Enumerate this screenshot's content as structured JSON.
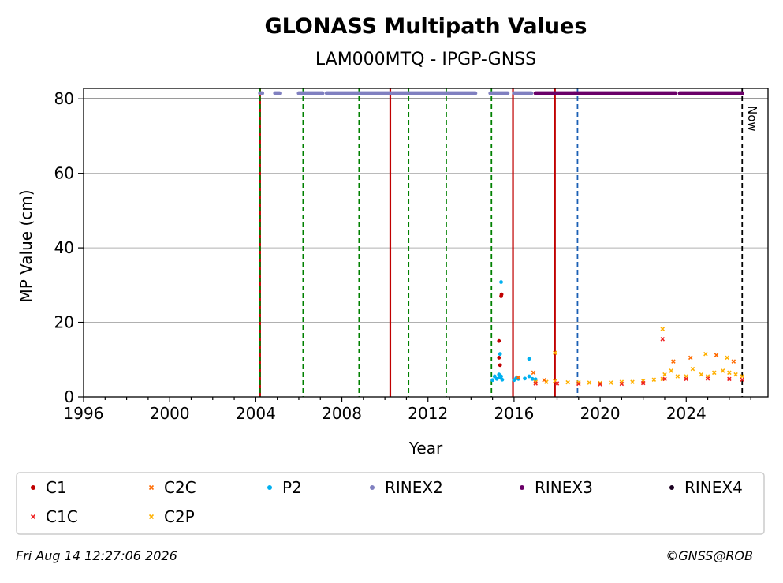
{
  "chart_data": {
    "type": "scatter",
    "title": "GLONASS Multipath Values",
    "subtitle": "LAM000MTQ - IPGP-GNSS",
    "xlabel": "Year",
    "ylabel": "MP Value (cm)",
    "xlim": [
      1996,
      2027.8
    ],
    "ylim": [
      0,
      82.8
    ],
    "x_ticks": [
      1996,
      2000,
      2004,
      2008,
      2012,
      2016,
      2020,
      2024
    ],
    "x_tick_labels": [
      "1996",
      "2000",
      "2004",
      "2008",
      "2012",
      "2016",
      "2020",
      "2024"
    ],
    "y_ticks": [
      0,
      20,
      40,
      60,
      80
    ],
    "y_tick_labels": [
      "0",
      "20",
      "40",
      "60",
      "80"
    ],
    "grid": "horizontal",
    "reference_line_y": 80,
    "legend_placement": "bottom",
    "legend": [
      {
        "label": "C1",
        "marker": "dot",
        "color": "#c00000"
      },
      {
        "label": "C2C",
        "marker": "cross",
        "color": "#ff6a00"
      },
      {
        "label": "P2",
        "marker": "dot",
        "color": "#00b0f0"
      },
      {
        "label": "RINEX2",
        "marker": "dot",
        "color": "#8080c0"
      },
      {
        "label": "RINEX3",
        "marker": "dot",
        "color": "#6a0068"
      },
      {
        "label": "RINEX4",
        "marker": "dot",
        "color": "#1a0020"
      },
      {
        "label": "C1C",
        "marker": "cross",
        "color": "#ee2222"
      },
      {
        "label": "C2P",
        "marker": "cross",
        "color": "#ffb000"
      }
    ],
    "vertical_lines": [
      {
        "x": 2004.2,
        "style": "solid",
        "color": "#c00000"
      },
      {
        "x": 2004.2,
        "style": "dashed",
        "color": "#008000"
      },
      {
        "x": 2006.2,
        "style": "dashed",
        "color": "#008000"
      },
      {
        "x": 2008.8,
        "style": "dashed",
        "color": "#008000"
      },
      {
        "x": 2010.25,
        "style": "solid",
        "color": "#c00000"
      },
      {
        "x": 2011.1,
        "style": "dashed",
        "color": "#008000"
      },
      {
        "x": 2012.85,
        "style": "dashed",
        "color": "#008000"
      },
      {
        "x": 2014.95,
        "style": "dashed",
        "color": "#008000"
      },
      {
        "x": 2015.95,
        "style": "solid",
        "color": "#c00000"
      },
      {
        "x": 2017.9,
        "style": "solid",
        "color": "#c00000"
      },
      {
        "x": 2018.95,
        "style": "dashed",
        "color": "#1a5fb4"
      },
      {
        "x": 2026.6,
        "style": "dashed",
        "color": "#000000",
        "label": "Now"
      }
    ],
    "rinex_segments": [
      {
        "series": "RINEX2",
        "x": [
          2004.2,
          2004.3
        ],
        "y": 81.5
      },
      {
        "series": "RINEX2",
        "x": [
          2004.9,
          2005.1
        ],
        "y": 81.5
      },
      {
        "series": "RINEX2",
        "x": [
          2006.0,
          2007.1
        ],
        "y": 81.5
      },
      {
        "series": "RINEX2",
        "x": [
          2007.3,
          2014.2
        ],
        "y": 81.5
      },
      {
        "series": "RINEX2",
        "x": [
          2014.9,
          2015.7
        ],
        "y": 81.5
      },
      {
        "series": "RINEX2",
        "x": [
          2016.0,
          2016.8
        ],
        "y": 81.5
      },
      {
        "series": "RINEX3",
        "x": [
          2017.0,
          2018.8
        ],
        "y": 81.5
      },
      {
        "series": "RINEX3",
        "x": [
          2018.8,
          2023.5
        ],
        "y": 81.5
      },
      {
        "series": "RINEX3",
        "x": [
          2023.7,
          2026.6
        ],
        "y": 81.5
      }
    ],
    "series": [
      {
        "name": "C1",
        "x": [
          2015.3,
          2015.3,
          2015.35,
          2015.4,
          2015.42
        ],
        "y": [
          15,
          10.5,
          8.5,
          27,
          27.5
        ]
      },
      {
        "name": "P2",
        "x": [
          2015.0,
          2015.1,
          2015.2,
          2015.3,
          2015.35,
          2015.4,
          2015.45,
          2016.0,
          2016.1,
          2016.2,
          2016.5,
          2016.7,
          2016.85,
          2017.0,
          2015.4,
          2015.35,
          2016.7
        ],
        "y": [
          4.5,
          5.5,
          4.8,
          6.0,
          5.2,
          5.5,
          4.6,
          4.5,
          5.0,
          4.8,
          4.9,
          5.5,
          4.8,
          4.7,
          30.8,
          11.5,
          10.2
        ]
      },
      {
        "name": "C2P",
        "x": [
          2017.0,
          2017.5,
          2017.9,
          2018.5,
          2019.0,
          2019.5,
          2020.0,
          2020.5,
          2021.0,
          2021.5,
          2022.0,
          2022.5,
          2022.9,
          2023.0,
          2023.3,
          2023.6,
          2024.0,
          2024.3,
          2024.7,
          2025.0,
          2025.3,
          2025.7,
          2026.0,
          2026.3,
          2026.6,
          2017.9,
          2022.9,
          2024.9,
          2025.9
        ],
        "y": [
          4.0,
          4.0,
          4.2,
          3.9,
          3.9,
          3.8,
          3.7,
          3.8,
          4.0,
          4.0,
          4.3,
          4.6,
          4.8,
          6.0,
          7.0,
          5.5,
          5.5,
          7.5,
          6.0,
          5.5,
          6.5,
          7.0,
          6.5,
          6.0,
          5.5,
          11.8,
          18.2,
          11.5,
          10.5
        ]
      },
      {
        "name": "C1C",
        "x": [
          2017.0,
          2018.0,
          2019.0,
          2020.0,
          2021.0,
          2022.0,
          2023.0,
          2024.0,
          2025.0,
          2026.0,
          2026.6,
          2022.9
        ],
        "y": [
          3.6,
          3.6,
          3.5,
          3.4,
          3.5,
          3.7,
          4.8,
          4.8,
          4.9,
          4.8,
          4.6,
          15.5
        ]
      },
      {
        "name": "C2C",
        "x": [
          2016.2,
          2016.9,
          2017.4,
          2023.4,
          2024.2,
          2025.4,
          2026.2
        ],
        "y": [
          5.2,
          6.5,
          4.5,
          9.5,
          10.5,
          11.2,
          9.5
        ]
      }
    ]
  },
  "footer": {
    "timestamp": "Fri Aug 14 12:27:06 2026",
    "credit": "©GNSS@ROB"
  }
}
